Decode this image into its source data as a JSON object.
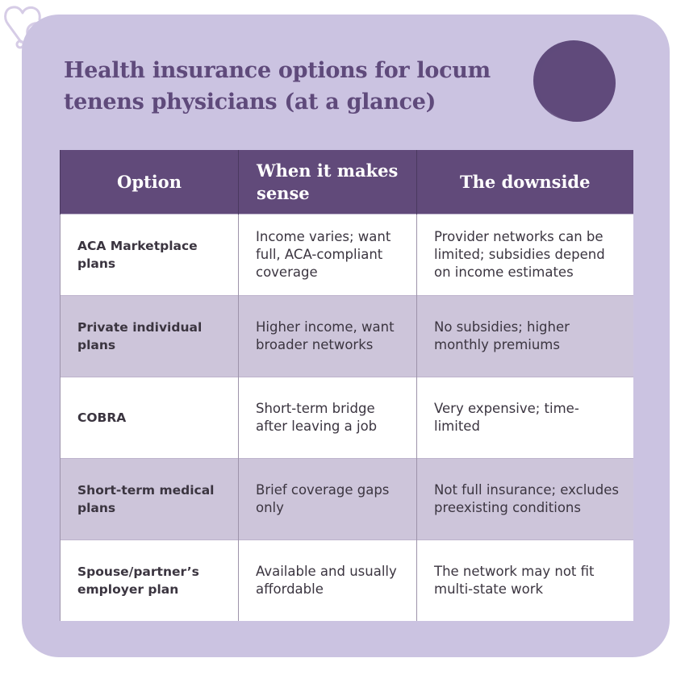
{
  "title": "Health insurance options for locum tenens physicians (at a glance)",
  "icon": "heart-stethoscope-icon",
  "colors": {
    "background": "#cbc3e1",
    "header": "#614a7a",
    "title": "#5f4a7b",
    "shaded_row": "#cdc5da"
  },
  "table": {
    "headers": [
      "Option",
      "When it makes sense",
      "The downside"
    ],
    "rows": [
      {
        "option": "ACA Marketplace plans",
        "when": "Income varies; want full, ACA-compliant coverage",
        "downside": "Provider networks can be limited; subsidies depend on income estimates"
      },
      {
        "option": "Private individual plans",
        "when": "Higher income, want broader networks",
        "downside": "No subsidies; higher monthly premiums"
      },
      {
        "option": "COBRA",
        "when": "Short-term bridge after leaving a job",
        "downside": "Very expensive; time-limited"
      },
      {
        "option": "Short-term medical plans",
        "when": "Brief coverage gaps only",
        "downside": "Not full insurance; excludes preexisting conditions"
      },
      {
        "option": "Spouse/partner’s employer plan",
        "when": "Available and usually affordable",
        "downside": "The network may not fit multi-state work"
      }
    ]
  }
}
